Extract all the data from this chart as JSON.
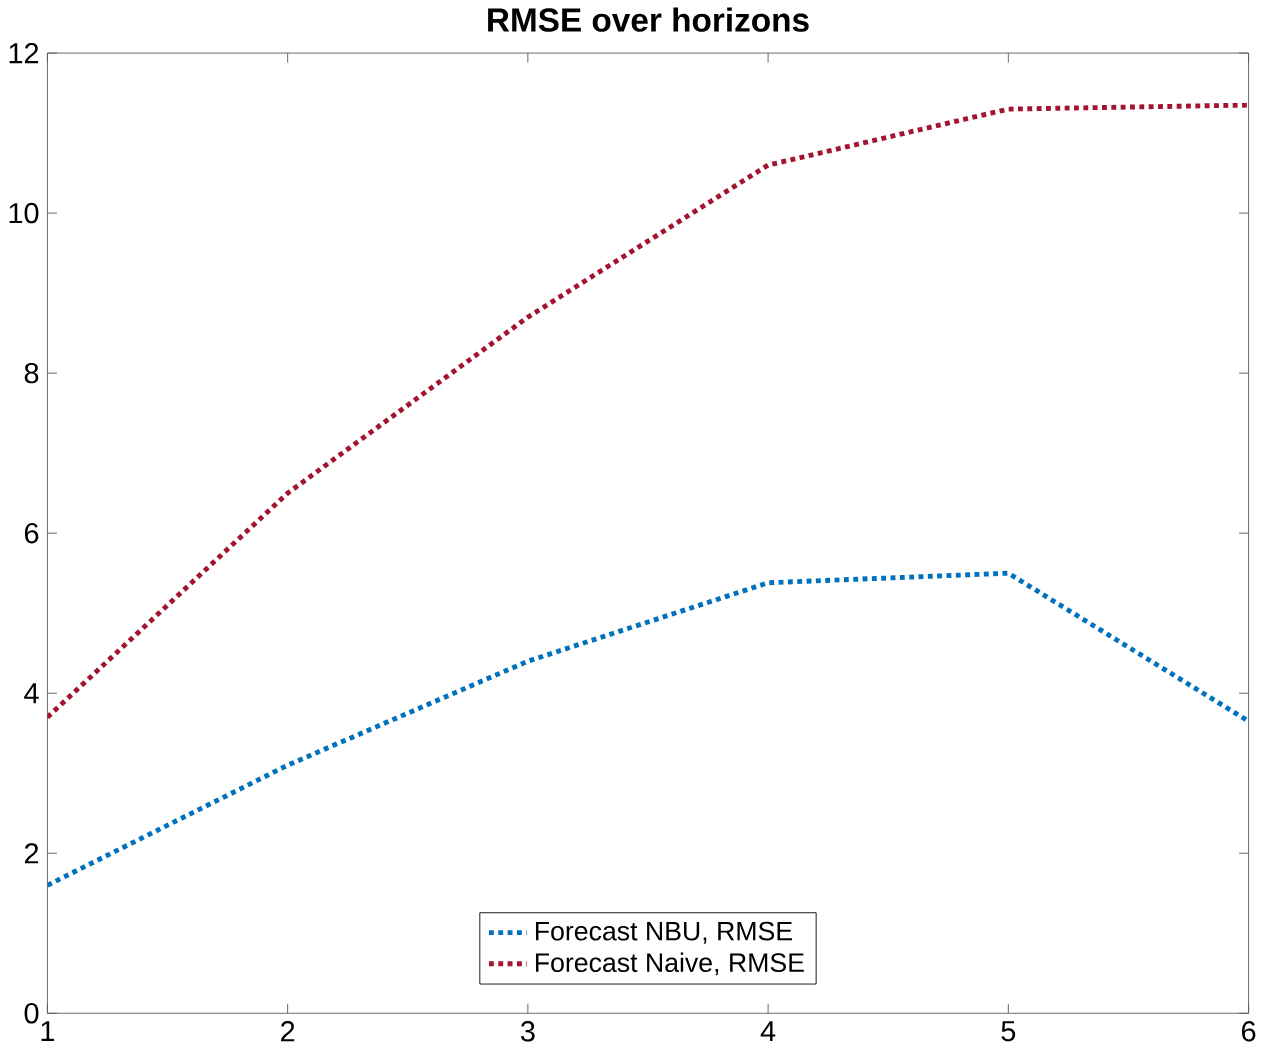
{
  "chart_data": {
    "type": "line",
    "title": "RMSE over horizons",
    "x": [
      1,
      2,
      3,
      4,
      5,
      6
    ],
    "series": [
      {
        "name": "Forecast NBU, RMSE",
        "color": "#0072bd",
        "values": [
          1.6,
          3.1,
          4.4,
          5.38,
          5.5,
          3.65
        ]
      },
      {
        "name": "Forecast Naive, RMSE",
        "color": "#a2142f",
        "values": [
          3.7,
          6.5,
          8.7,
          10.6,
          11.3,
          11.35
        ]
      }
    ],
    "xlim": [
      1,
      6
    ],
    "ylim": [
      0,
      12
    ],
    "xticks": [
      1,
      2,
      3,
      4,
      5,
      6
    ],
    "yticks": [
      0,
      2,
      4,
      6,
      8,
      10,
      12
    ],
    "legend": "bottom",
    "line_style": "dotted",
    "marker": "none",
    "grid": false
  }
}
